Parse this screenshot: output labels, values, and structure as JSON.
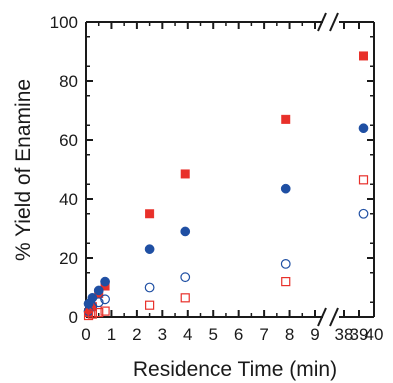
{
  "chart_data": {
    "type": "scatter",
    "title": "",
    "xlabel": "Residence Time (min)",
    "ylabel": "% Yield of Enamine",
    "xlim": [
      0,
      40
    ],
    "ylim": [
      0,
      100
    ],
    "x_axis_break": [
      9.5,
      37.5
    ],
    "x_ticks": [
      0,
      1,
      2,
      3,
      4,
      5,
      6,
      7,
      8,
      9,
      38,
      39,
      40
    ],
    "y_ticks": [
      0,
      20,
      40,
      60,
      80,
      100
    ],
    "grid": false,
    "legend": "none",
    "series": [
      {
        "marker": "square",
        "filled": true,
        "color": "#e8302a",
        "points": [
          [
            0.1,
            1.5
          ],
          [
            0.25,
            3.5
          ],
          [
            0.5,
            8.0
          ],
          [
            0.75,
            10.5
          ],
          [
            2.5,
            35.0
          ],
          [
            3.9,
            48.5
          ],
          [
            7.85,
            67.0
          ],
          [
            39.3,
            88.5
          ]
        ]
      },
      {
        "marker": "circle",
        "filled": true,
        "color": "#1f4fa3",
        "points": [
          [
            0.1,
            4.5
          ],
          [
            0.25,
            6.5
          ],
          [
            0.5,
            9.0
          ],
          [
            0.75,
            12.0
          ],
          [
            2.5,
            23.0
          ],
          [
            3.9,
            29.0
          ],
          [
            7.85,
            43.5
          ],
          [
            39.3,
            64.0
          ]
        ]
      },
      {
        "marker": "circle",
        "filled": false,
        "color": "#1f4fa3",
        "points": [
          [
            0.1,
            2.0
          ],
          [
            0.25,
            3.5
          ],
          [
            0.5,
            5.0
          ],
          [
            0.75,
            6.0
          ],
          [
            2.5,
            10.0
          ],
          [
            3.9,
            13.5
          ],
          [
            7.85,
            18.0
          ],
          [
            39.3,
            35.0
          ]
        ]
      },
      {
        "marker": "square",
        "filled": false,
        "color": "#e8302a",
        "points": [
          [
            0.1,
            0.5
          ],
          [
            0.25,
            1.0
          ],
          [
            0.5,
            1.5
          ],
          [
            0.75,
            2.0
          ],
          [
            2.5,
            4.0
          ],
          [
            3.9,
            6.5
          ],
          [
            7.85,
            12.0
          ],
          [
            39.3,
            46.5
          ]
        ]
      }
    ]
  }
}
